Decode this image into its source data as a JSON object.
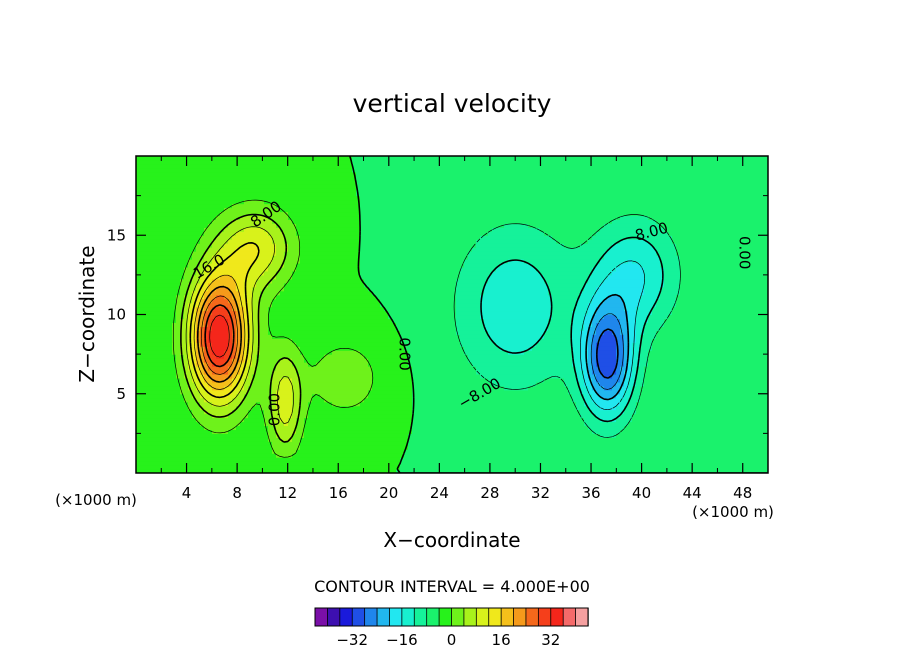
{
  "chart_data": {
    "type": "heatmap",
    "title": "vertical velocity",
    "xlabel": "X−coordinate",
    "ylabel": "Z−coordinate",
    "x_unit_left": "(×1000 m)",
    "x_unit_right": "(×1000 m)",
    "xlim": [
      0,
      50
    ],
    "ylim": [
      0,
      20
    ],
    "x_ticks": [
      4,
      8,
      12,
      16,
      20,
      24,
      28,
      32,
      36,
      40,
      44,
      48
    ],
    "y_ticks": [
      5,
      10,
      15
    ],
    "contour_interval_label": "CONTOUR INTERVAL = 4.000E+00",
    "contour_interval": 4,
    "contour_labels": [
      {
        "text": "8.00",
        "x": 10.3,
        "z": 16.3,
        "angle": -35
      },
      {
        "text": "16.0",
        "x": 5.8,
        "z": 13.0,
        "angle": -30
      },
      {
        "text": "0.00",
        "x": 21.2,
        "z": 7.5,
        "angle": 90
      },
      {
        "text": "0.00",
        "x": 11.0,
        "z": 4.0,
        "angle": -90
      },
      {
        "text": "8.00",
        "x": 40.8,
        "z": 15.2,
        "angle": -15
      },
      {
        "text": "−8.00",
        "x": 27.2,
        "z": 5.0,
        "angle": -30
      },
      {
        "text": "0.00",
        "x": 48.1,
        "z": 13.9,
        "angle": 90
      }
    ],
    "colorbar_levels": [
      -40,
      -36,
      -32,
      -28,
      -24,
      -20,
      -16,
      -12,
      -8,
      -4,
      0,
      4,
      8,
      12,
      16,
      20,
      24,
      28,
      32,
      36,
      40
    ],
    "colorbar_colors": [
      "#7a0fa8",
      "#3d0fb0",
      "#1a1adb",
      "#1f4fe6",
      "#1f86ec",
      "#21b7ef",
      "#22e7f0",
      "#18f0cf",
      "#15f29a",
      "#1af26c",
      "#27f21b",
      "#6ef21b",
      "#a8f21b",
      "#d8f21b",
      "#f0e81b",
      "#f5c01b",
      "#f59a1b",
      "#f5681b",
      "#f53f1b",
      "#f5261b",
      "#f56a6a",
      "#f5a0a0"
    ],
    "colorbar_tick_labels": [
      "−32",
      "−16",
      "0",
      "16",
      "32"
    ],
    "colorbar_tick_values": [
      -32,
      -16,
      0,
      16,
      32
    ],
    "fields": [
      {
        "sign": 1,
        "amp": 40,
        "x": 6.6,
        "z": 8.6,
        "sx": 2.4,
        "sz": 4.0
      },
      {
        "sign": 1,
        "amp": 15,
        "x": 9.5,
        "z": 14.2,
        "sx": 3.0,
        "sz": 2.6
      },
      {
        "sign": 1,
        "amp": 14,
        "x": 11.8,
        "z": 4.5,
        "sx": 1.4,
        "sz": 3.4
      },
      {
        "sign": 1,
        "amp": 7,
        "x": 16.5,
        "z": 6.0,
        "sx": 3.0,
        "sz": 2.5
      },
      {
        "sign": -1,
        "amp": 11,
        "x": 30.0,
        "z": 10.5,
        "sx": 4.8,
        "sz": 5.2
      },
      {
        "sign": -1,
        "amp": 26,
        "x": 37.3,
        "z": 7.2,
        "sx": 2.1,
        "sz": 3.6
      },
      {
        "sign": -1,
        "amp": 12,
        "x": 39.5,
        "z": 12.5,
        "sx": 3.4,
        "sz": 3.6
      }
    ]
  }
}
